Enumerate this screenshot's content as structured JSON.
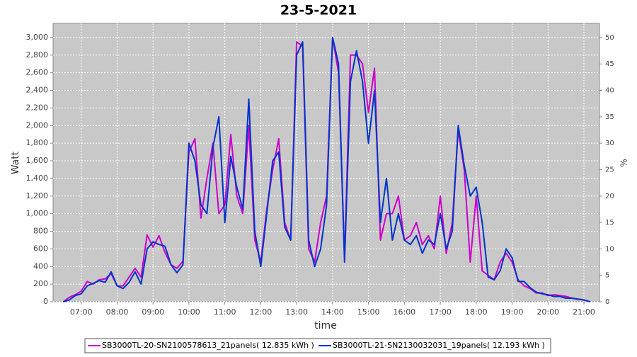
{
  "chart_data": {
    "type": "line",
    "title": "23-5-2021",
    "xlabel": "time",
    "ylabel": "Watt",
    "y2label": "%",
    "x": [
      "06:30",
      "06:40",
      "06:50",
      "07:00",
      "07:10",
      "07:20",
      "07:30",
      "07:40",
      "07:50",
      "08:00",
      "08:10",
      "08:20",
      "08:30",
      "08:40",
      "08:50",
      "09:00",
      "09:10",
      "09:20",
      "09:30",
      "09:40",
      "09:50",
      "10:00",
      "10:10",
      "10:20",
      "10:30",
      "10:40",
      "10:50",
      "11:00",
      "11:10",
      "11:20",
      "11:30",
      "11:40",
      "11:50",
      "12:00",
      "12:10",
      "12:20",
      "12:30",
      "12:40",
      "12:50",
      "13:00",
      "13:10",
      "13:20",
      "13:30",
      "13:40",
      "13:50",
      "14:00",
      "14:10",
      "14:20",
      "14:30",
      "14:40",
      "14:50",
      "15:00",
      "15:10",
      "15:20",
      "15:30",
      "15:40",
      "15:50",
      "16:00",
      "16:10",
      "16:20",
      "16:30",
      "16:40",
      "16:50",
      "17:00",
      "17:10",
      "17:20",
      "17:30",
      "17:40",
      "17:50",
      "18:00",
      "18:10",
      "18:20",
      "18:30",
      "18:40",
      "18:50",
      "19:00",
      "19:10",
      "19:20",
      "19:30",
      "19:40",
      "19:50",
      "20:00",
      "20:10",
      "20:20",
      "20:30",
      "20:40",
      "20:50",
      "21:00",
      "21:10"
    ],
    "series": [
      {
        "name": "SB3000TL-20-SN2100578613_21panels( 12.835 kWh )",
        "color": "#cc00cc",
        "values": [
          0,
          50,
          80,
          120,
          230,
          200,
          250,
          260,
          320,
          180,
          180,
          280,
          380,
          280,
          760,
          620,
          750,
          560,
          420,
          380,
          460,
          1700,
          1850,
          950,
          1400,
          1800,
          1000,
          1100,
          1900,
          1200,
          1000,
          2000,
          700,
          450,
          1050,
          1500,
          1850,
          900,
          700,
          2950,
          2900,
          600,
          450,
          900,
          1200,
          3000,
          2600,
          500,
          2800,
          2800,
          2700,
          2150,
          2650,
          700,
          1000,
          1000,
          1200,
          700,
          750,
          900,
          650,
          750,
          600,
          1200,
          550,
          900,
          1950,
          1500,
          450,
          1200,
          350,
          300,
          250,
          450,
          550,
          450,
          250,
          180,
          150,
          100,
          100,
          70,
          80,
          70,
          60,
          40,
          30,
          20,
          0
        ]
      },
      {
        "name": "SB3000TL-21-SN2130032031_19panels( 12.193 kWh )",
        "color": "#0033cc",
        "values": [
          0,
          20,
          70,
          90,
          180,
          210,
          240,
          220,
          340,
          180,
          150,
          220,
          340,
          200,
          600,
          680,
          650,
          630,
          420,
          330,
          420,
          1800,
          1600,
          1100,
          1000,
          1750,
          2100,
          900,
          1650,
          1300,
          1050,
          2300,
          800,
          400,
          1000,
          1600,
          1700,
          850,
          700,
          2800,
          2950,
          700,
          400,
          600,
          1100,
          3000,
          2700,
          450,
          2500,
          2850,
          2500,
          1800,
          2400,
          900,
          1400,
          700,
          1000,
          700,
          650,
          750,
          550,
          700,
          650,
          1000,
          600,
          800,
          2000,
          1550,
          1200,
          1300,
          900,
          280,
          250,
          350,
          600,
          500,
          230,
          230,
          160,
          110,
          90,
          80,
          60,
          60,
          40,
          40,
          30,
          20,
          0
        ]
      }
    ],
    "xlim": [
      "06:13",
      "21:26"
    ],
    "xticks": [
      "07:00",
      "08:00",
      "09:00",
      "10:00",
      "11:00",
      "12:00",
      "13:00",
      "14:00",
      "15:00",
      "16:00",
      "17:00",
      "18:00",
      "19:00",
      "20:00",
      "21:00"
    ],
    "ylim": [
      0,
      3160
    ],
    "yticks": [
      0,
      200,
      400,
      600,
      800,
      {
        "value": 1000,
        "label": "1,000"
      },
      {
        "value": 1200,
        "label": "1,200"
      },
      {
        "value": 1400,
        "label": "1,400"
      },
      {
        "value": 1600,
        "label": "1,600"
      },
      {
        "value": 1800,
        "label": "1,800"
      },
      {
        "value": 2000,
        "label": "2,000"
      },
      {
        "value": 2200,
        "label": "2,200"
      },
      {
        "value": 2400,
        "label": "2,400"
      },
      {
        "value": 2600,
        "label": "2,600"
      },
      {
        "value": 2800,
        "label": "2,800"
      },
      {
        "value": 3000,
        "label": "3,000"
      }
    ],
    "y2lim": [
      0,
      52.67
    ],
    "y2ticks": [
      0,
      5,
      10,
      15,
      20,
      25,
      30,
      35,
      40,
      45,
      50
    ],
    "grid": true
  }
}
